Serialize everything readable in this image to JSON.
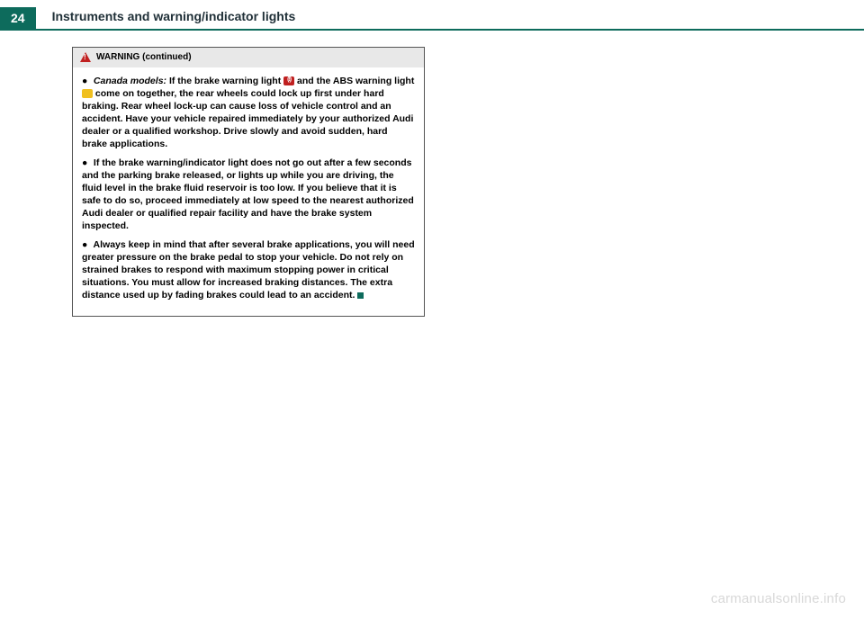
{
  "colors": {
    "teal": "#0d6b5c",
    "header_text": "#203038",
    "warn_red": "#c02020",
    "warn_yellow": "#f0c020",
    "end_square": "#0d6b5c",
    "watermark": "#d8d8d8"
  },
  "page_number": "24",
  "chapter_title": "Instruments and warning/indicator lights",
  "warning": {
    "header": "WARNING (continued)",
    "p1_lead": "Canada models:",
    "p1_a": " If the brake warning light ",
    "p1_b": " and the ABS warning light ",
    "p1_c": " come on together, the rear wheels could lock up first under hard braking. Rear wheel lock-up can cause loss of vehicle control and an accident. Have your vehicle repaired immediately by your authorized Audi dealer or a qualified workshop. Drive slowly and avoid sudden, hard brake applications.",
    "p2": "If the brake warning/indicator light does not go out after a few seconds and the parking brake released, or lights up while you are driving, the fluid level in the brake fluid reservoir is too low. If you believe that it is safe to do so, proceed immediately at low speed to the nearest authorized Audi dealer or qualified repair facility and have the brake system inspected.",
    "p3": "Always keep in mind that after several brake applications, you will need greater pressure on the brake pedal to stop your vehicle. Do not rely on strained brakes to respond with maximum stopping power in critical situations. You must allow for increased braking distances. The extra distance used up by fading brakes could lead to an accident."
  },
  "watermark": "carmanualsonline.info"
}
